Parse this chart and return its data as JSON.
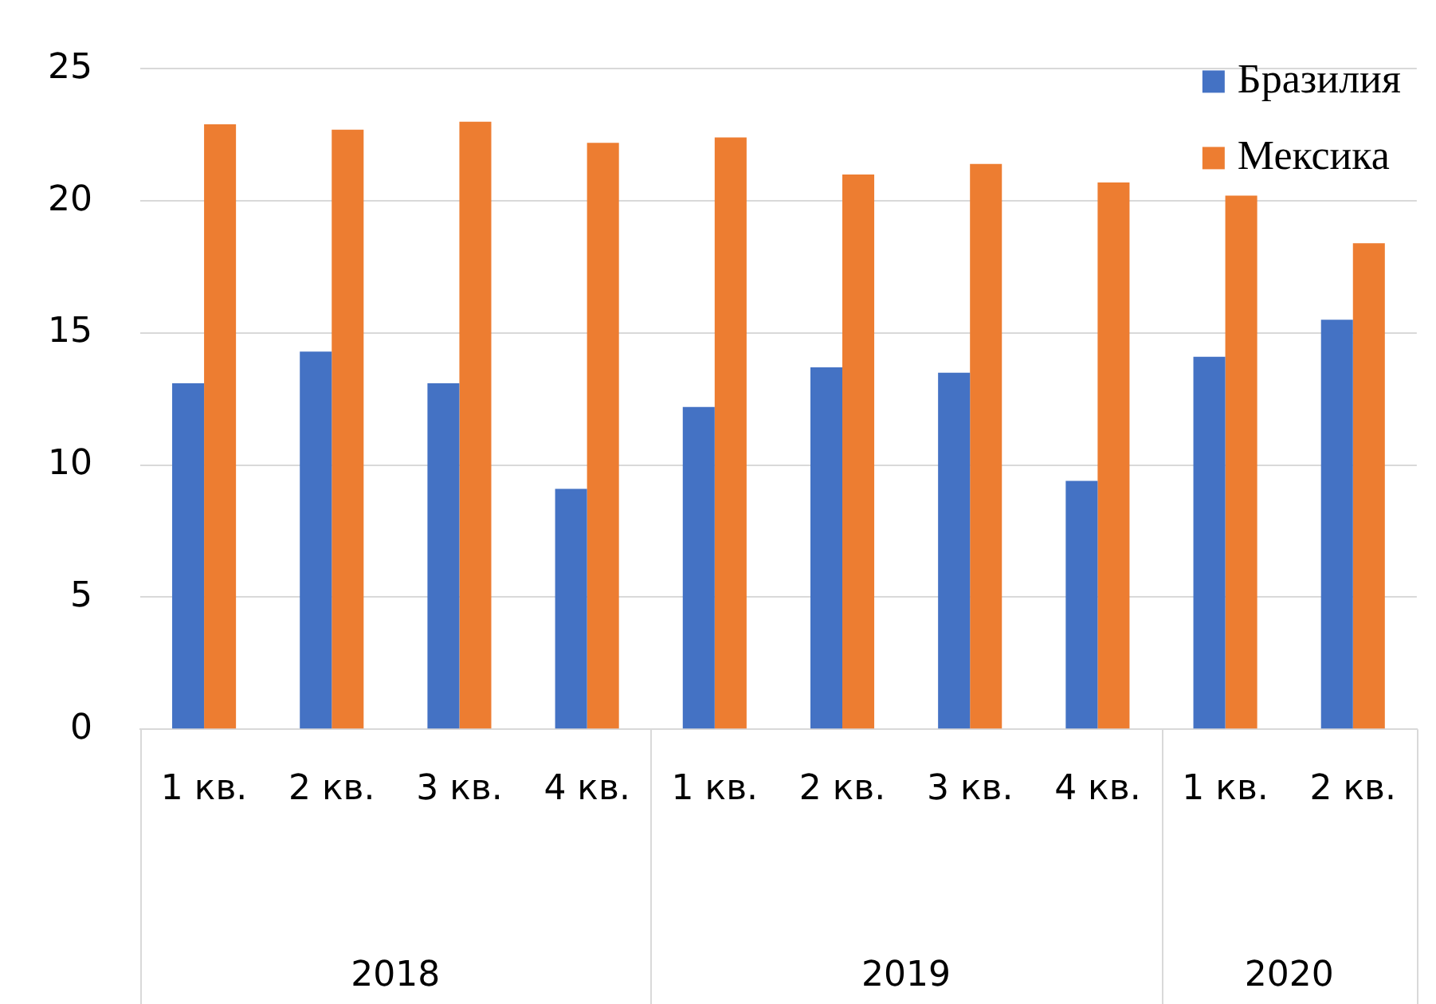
{
  "chart_data": {
    "type": "bar",
    "categories": [
      "1 кв.",
      "2 кв.",
      "3 кв.",
      "4 кв.",
      "1 кв.",
      "2 кв.",
      "3 кв.",
      "4 кв.",
      "1 кв.",
      "2 кв."
    ],
    "series": [
      {
        "name": "Бразилия",
        "color": "#4472c4",
        "values": [
          13.1,
          14.3,
          13.1,
          9.1,
          12.2,
          13.7,
          13.5,
          9.4,
          14.1,
          15.5
        ]
      },
      {
        "name": "Мексика",
        "color": "#ed7d31",
        "values": [
          22.9,
          22.7,
          23.0,
          22.2,
          22.4,
          21.0,
          21.4,
          20.7,
          20.2,
          18.4
        ]
      }
    ],
    "ylim": [
      0,
      25
    ],
    "yticks": [
      0,
      5,
      10,
      15,
      20,
      25
    ],
    "grid": "y",
    "legend": "top right",
    "annotations": [
      "2018",
      "2019",
      "2020"
    ]
  }
}
